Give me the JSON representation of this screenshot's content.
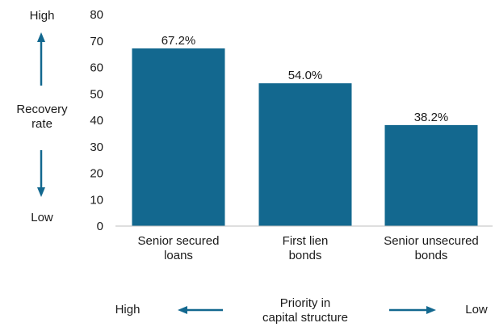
{
  "chart_data": {
    "type": "bar",
    "categories": [
      "Senior secured\nloans",
      "First lien\nbonds",
      "Senior unsecured\nbonds"
    ],
    "values": [
      67.2,
      54.0,
      38.2
    ],
    "data_labels": [
      "67.2%",
      "54.0%",
      "38.2%"
    ],
    "ylim": [
      0,
      80
    ],
    "yticks": [
      0,
      10,
      20,
      30,
      40,
      50,
      60,
      70,
      80
    ],
    "title": "",
    "xlabel": "",
    "ylabel": "",
    "grid": false,
    "bar_color": "#13688F"
  },
  "annotations": {
    "y_high": "High",
    "y_low": "Low",
    "y_label": "Recovery\nrate",
    "x_high": "High",
    "x_low": "Low",
    "x_label": "Priority in\ncapital structure"
  },
  "colors": {
    "accent": "#13688F",
    "text": "#1a1a1a",
    "axis": "#bfbfbf"
  }
}
